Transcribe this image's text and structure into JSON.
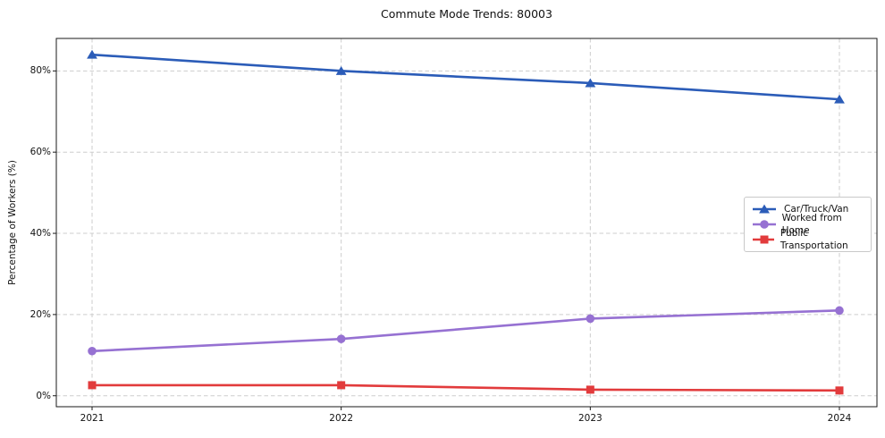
{
  "title": "Commute Mode Trends: 80003",
  "chart_data": {
    "type": "line",
    "title": "Commute Mode Trends: 80003",
    "xlabel": "",
    "ylabel": "Percentage of Workers (%)",
    "x": [
      2021,
      2022,
      2023,
      2024
    ],
    "xticks": [
      "2021",
      "2022",
      "2023",
      "2024"
    ],
    "yticks": [
      "0%",
      "20%",
      "40%",
      "60%",
      "80%"
    ],
    "ytick_values": [
      0,
      20,
      40,
      60,
      80
    ],
    "ylim": [
      -2.7,
      88
    ],
    "grid": true,
    "grid_style": "dashed",
    "grid_color": "#cdcdcd",
    "legend_position": "center-right",
    "series": [
      {
        "name": "Car/Truck/Van",
        "color": "#2b5cb8",
        "marker": "triangle",
        "values": [
          84,
          80,
          77,
          73
        ]
      },
      {
        "name": "Worked from Home",
        "color": "#9671d2",
        "marker": "circle",
        "values": [
          11,
          14,
          19,
          21
        ]
      },
      {
        "name": "Public Transportation",
        "color": "#e23b3c",
        "marker": "square",
        "values": [
          2.6,
          2.6,
          1.5,
          1.3
        ]
      }
    ]
  }
}
